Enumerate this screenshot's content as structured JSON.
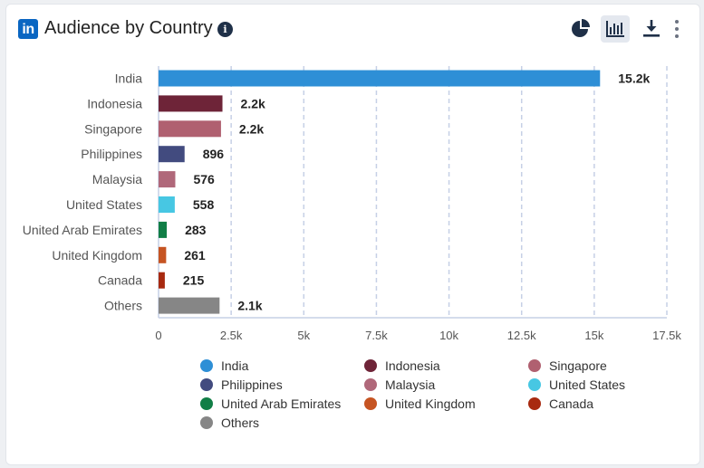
{
  "header": {
    "title": "Audience by Country",
    "logo_text": "in",
    "info_icon": "info-icon",
    "tools": [
      {
        "icon": "pie-chart-icon"
      },
      {
        "icon": "bar-chart-icon",
        "active": true
      },
      {
        "icon": "download-icon"
      },
      {
        "icon": "more-vertical-icon"
      }
    ]
  },
  "chart_data": {
    "type": "bar",
    "orientation": "horizontal",
    "title": "",
    "categories": [
      "India",
      "Indonesia",
      "Singapore",
      "Philippines",
      "Malaysia",
      "United States",
      "United Arab Emirates",
      "United Kingdom",
      "Canada",
      "Others"
    ],
    "values": [
      15200,
      2200,
      2150,
      896,
      576,
      558,
      283,
      261,
      215,
      2100
    ],
    "value_labels": [
      "15.2k",
      "2.2k",
      "2.2k",
      "896",
      "576",
      "558",
      "283",
      "261",
      "215",
      "2.1k"
    ],
    "colors": [
      "#2e8fd6",
      "#6e2438",
      "#b06070",
      "#424b7f",
      "#b0687a",
      "#47c7e3",
      "#117e46",
      "#c65422",
      "#a82a10",
      "#868686"
    ],
    "xlim": [
      0,
      17500
    ],
    "x_ticks": [
      0,
      2500,
      5000,
      7500,
      10000,
      12500,
      15000,
      17500
    ],
    "x_tick_labels": [
      "0",
      "2.5k",
      "5k",
      "7.5k",
      "10k",
      "12.5k",
      "15k",
      "17.5k"
    ],
    "grid": "vertical dashed",
    "legend": {
      "placement": "bottom",
      "entries": [
        "India",
        "Indonesia",
        "Singapore",
        "Philippines",
        "Malaysia",
        "United States",
        "United Arab Emirates",
        "United Kingdom",
        "Canada",
        "Others"
      ]
    }
  }
}
